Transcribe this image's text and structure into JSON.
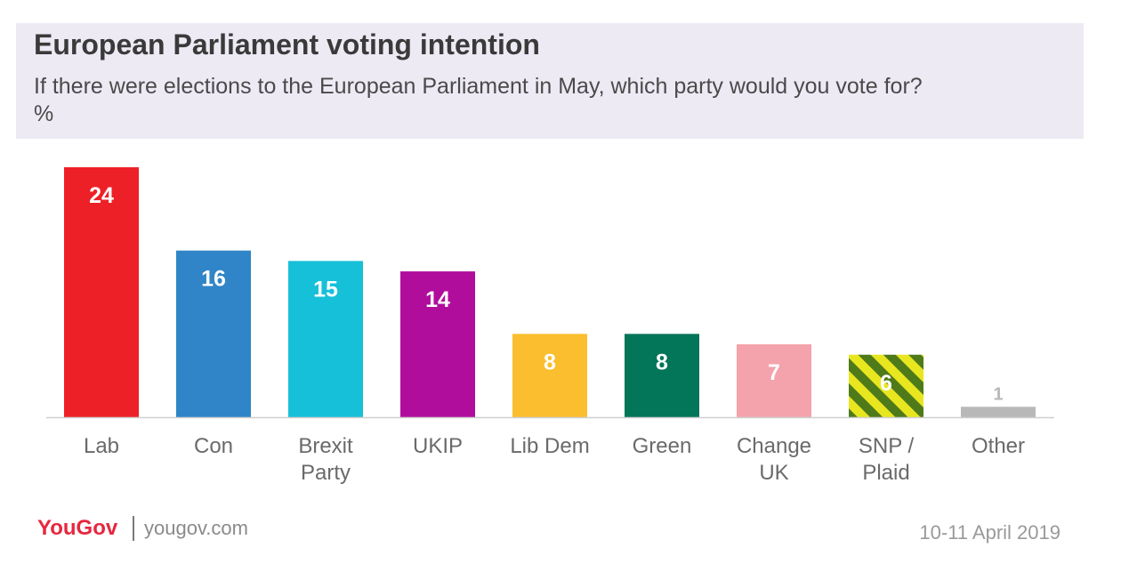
{
  "chart_data": {
    "type": "bar",
    "title": "European Parliament voting intention",
    "subtitle": "If there were elections to the European Parliament in May, which party would you vote for? %",
    "categories": [
      [
        "Lab"
      ],
      [
        "Con"
      ],
      [
        "Brexit",
        "Party"
      ],
      [
        "UKIP"
      ],
      [
        "Lib Dem"
      ],
      [
        "Green"
      ],
      [
        "Change",
        "UK"
      ],
      [
        "SNP /",
        "Plaid"
      ],
      [
        "Other"
      ]
    ],
    "values": [
      24,
      16,
      15,
      14,
      8,
      8,
      7,
      6,
      1
    ],
    "colors": [
      "#ee2027",
      "#2f85c7",
      "#16c0d8",
      "#b10d9d",
      "#fabe2e",
      "#037558",
      "#f4a2ab",
      "striped-green-yellow",
      "#b8b8b8"
    ],
    "stripe_colors": [
      "#4f7a1a",
      "#e8e61f"
    ],
    "label_colors": [
      "#ffffff",
      "#ffffff",
      "#ffffff",
      "#ffffff",
      "#ffffff",
      "#ffffff",
      "#ffffff",
      "#ffffff",
      "#b8b8b8"
    ],
    "ylim": [
      0,
      24
    ],
    "grid": false,
    "xlabel": "",
    "ylabel": ""
  },
  "footer": {
    "logo_you": "You",
    "logo_gov": "Gov",
    "url": "yougov.com",
    "date": "10-11 April 2019"
  }
}
